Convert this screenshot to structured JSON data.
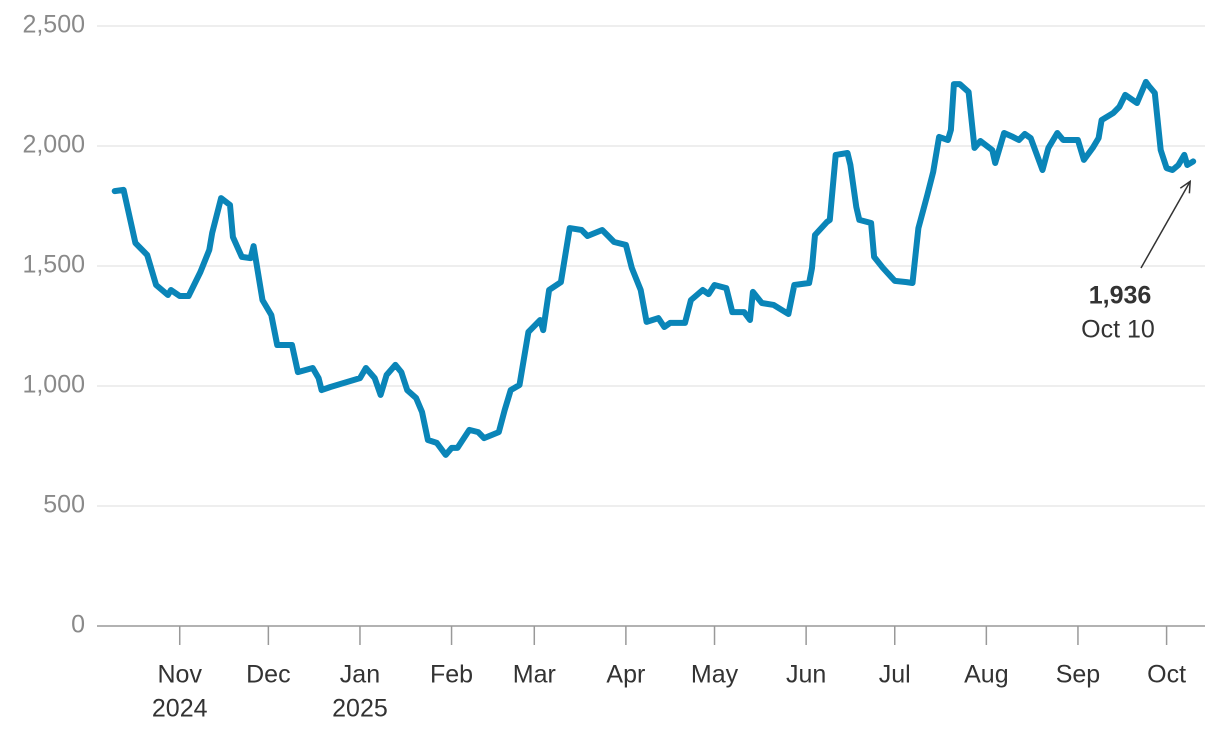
{
  "chart_data": {
    "type": "line",
    "color": "#0a85b8",
    "grid": true,
    "x": [
      "2024-10-10",
      "2024-10-13",
      "2024-10-17",
      "2024-10-21",
      "2024-10-24",
      "2024-10-28",
      "2024-10-29",
      "2024-11-01",
      "2024-11-04",
      "2024-11-08",
      "2024-11-11",
      "2024-11-12",
      "2024-11-15",
      "2024-11-18",
      "2024-11-19",
      "2024-11-22",
      "2024-11-25",
      "2024-11-26",
      "2024-11-29",
      "2024-12-02",
      "2024-12-04",
      "2024-12-09",
      "2024-12-11",
      "2024-12-16",
      "2024-12-18",
      "2024-12-19",
      "2024-12-22",
      "2025-01-01",
      "2025-01-03",
      "2025-01-06",
      "2025-01-08",
      "2025-01-10",
      "2025-01-13",
      "2025-01-15",
      "2025-01-17",
      "2025-01-20",
      "2025-01-22",
      "2025-01-24",
      "2025-01-27",
      "2025-01-30",
      "2025-02-01",
      "2025-02-03",
      "2025-02-07",
      "2025-02-10",
      "2025-02-12",
      "2025-02-17",
      "2025-02-19",
      "2025-02-21",
      "2025-02-24",
      "2025-02-27",
      "2025-03-03",
      "2025-03-04",
      "2025-03-06",
      "2025-03-10",
      "2025-03-13",
      "2025-03-17",
      "2025-03-19",
      "2025-03-24",
      "2025-03-26",
      "2025-03-28",
      "2025-04-01",
      "2025-04-03",
      "2025-04-06",
      "2025-04-08",
      "2025-04-12",
      "2025-04-14",
      "2025-04-16",
      "2025-04-21",
      "2025-04-23",
      "2025-04-27",
      "2025-04-29",
      "2025-05-01",
      "2025-05-05",
      "2025-05-07",
      "2025-05-11",
      "2025-05-13",
      "2025-05-14",
      "2025-05-17",
      "2025-05-21",
      "2025-05-26",
      "2025-05-28",
      "2025-06-02",
      "2025-06-03",
      "2025-06-04",
      "2025-06-08",
      "2025-06-09",
      "2025-06-11",
      "2025-06-15",
      "2025-06-16",
      "2025-06-18",
      "2025-06-19",
      "2025-06-23",
      "2025-06-24",
      "2025-06-27",
      "2025-07-01",
      "2025-07-05",
      "2025-07-07",
      "2025-07-09",
      "2025-07-12",
      "2025-07-14",
      "2025-07-16",
      "2025-07-19",
      "2025-07-20",
      "2025-07-21",
      "2025-07-23",
      "2025-07-26",
      "2025-07-28",
      "2025-07-30",
      "2025-08-03",
      "2025-08-04",
      "2025-08-07",
      "2025-08-10",
      "2025-08-12",
      "2025-08-14",
      "2025-08-16",
      "2025-08-20",
      "2025-08-22",
      "2025-08-25",
      "2025-08-27",
      "2025-09-01",
      "2025-09-03",
      "2025-09-06",
      "2025-09-08",
      "2025-09-09",
      "2025-09-13",
      "2025-09-15",
      "2025-09-17",
      "2025-09-21",
      "2025-09-24",
      "2025-09-25",
      "2025-09-27",
      "2025-09-29",
      "2025-10-01",
      "2025-10-03",
      "2025-10-05",
      "2025-10-07",
      "2025-10-08",
      "2025-10-10"
    ],
    "values": [
      1812,
      1817,
      1596,
      1546,
      1421,
      1379,
      1400,
      1375,
      1375,
      1475,
      1567,
      1638,
      1783,
      1754,
      1621,
      1538,
      1533,
      1583,
      1358,
      1296,
      1171,
      1171,
      1058,
      1075,
      1033,
      983,
      996,
      1033,
      1075,
      1033,
      963,
      1046,
      1088,
      1058,
      983,
      950,
      892,
      775,
      763,
      713,
      742,
      742,
      817,
      808,
      783,
      808,
      900,
      983,
      1004,
      1225,
      1275,
      1233,
      1400,
      1433,
      1658,
      1650,
      1625,
      1650,
      1625,
      1600,
      1588,
      1492,
      1400,
      1267,
      1283,
      1246,
      1263,
      1263,
      1358,
      1400,
      1383,
      1421,
      1408,
      1308,
      1308,
      1275,
      1392,
      1346,
      1338,
      1300,
      1421,
      1429,
      1492,
      1629,
      1683,
      1692,
      1963,
      1971,
      1921,
      1746,
      1692,
      1679,
      1538,
      1492,
      1438,
      1433,
      1429,
      1658,
      1796,
      1892,
      2038,
      2025,
      2067,
      2258,
      2258,
      2225,
      1992,
      2021,
      1983,
      1929,
      2054,
      2038,
      2025,
      2050,
      2033,
      1900,
      1992,
      2054,
      2025,
      2025,
      1942,
      1992,
      2033,
      2108,
      2138,
      2163,
      2213,
      2179,
      2267,
      2250,
      2221,
      1983,
      1908,
      1900,
      1921,
      1963,
      1921,
      1936
    ],
    "xlim": [
      "2024-10-04",
      "2025-10-14"
    ],
    "xticks": [
      {
        "value": "2024-11-01",
        "label": "Nov",
        "year": "2024"
      },
      {
        "value": "2024-12-01",
        "label": "Dec"
      },
      {
        "value": "2025-01-01",
        "label": "Jan",
        "year": "2025"
      },
      {
        "value": "2025-02-01",
        "label": "Feb"
      },
      {
        "value": "2025-03-01",
        "label": "Mar"
      },
      {
        "value": "2025-04-01",
        "label": "Apr"
      },
      {
        "value": "2025-05-01",
        "label": "May"
      },
      {
        "value": "2025-06-01",
        "label": "Jun"
      },
      {
        "value": "2025-07-01",
        "label": "Jul"
      },
      {
        "value": "2025-08-01",
        "label": "Aug"
      },
      {
        "value": "2025-09-01",
        "label": "Sep"
      },
      {
        "value": "2025-10-01",
        "label": "Oct"
      }
    ],
    "ylim": [
      0,
      2500
    ],
    "yticks": [
      0,
      500,
      {
        "value": 1000,
        "label": "1,000"
      },
      {
        "value": 1500,
        "label": "1,500"
      },
      {
        "value": 2000,
        "label": "2,000"
      },
      {
        "value": 2500,
        "label": "2,500"
      }
    ],
    "annotation": {
      "label": "1,936",
      "sublabel": "Oct 10"
    }
  }
}
